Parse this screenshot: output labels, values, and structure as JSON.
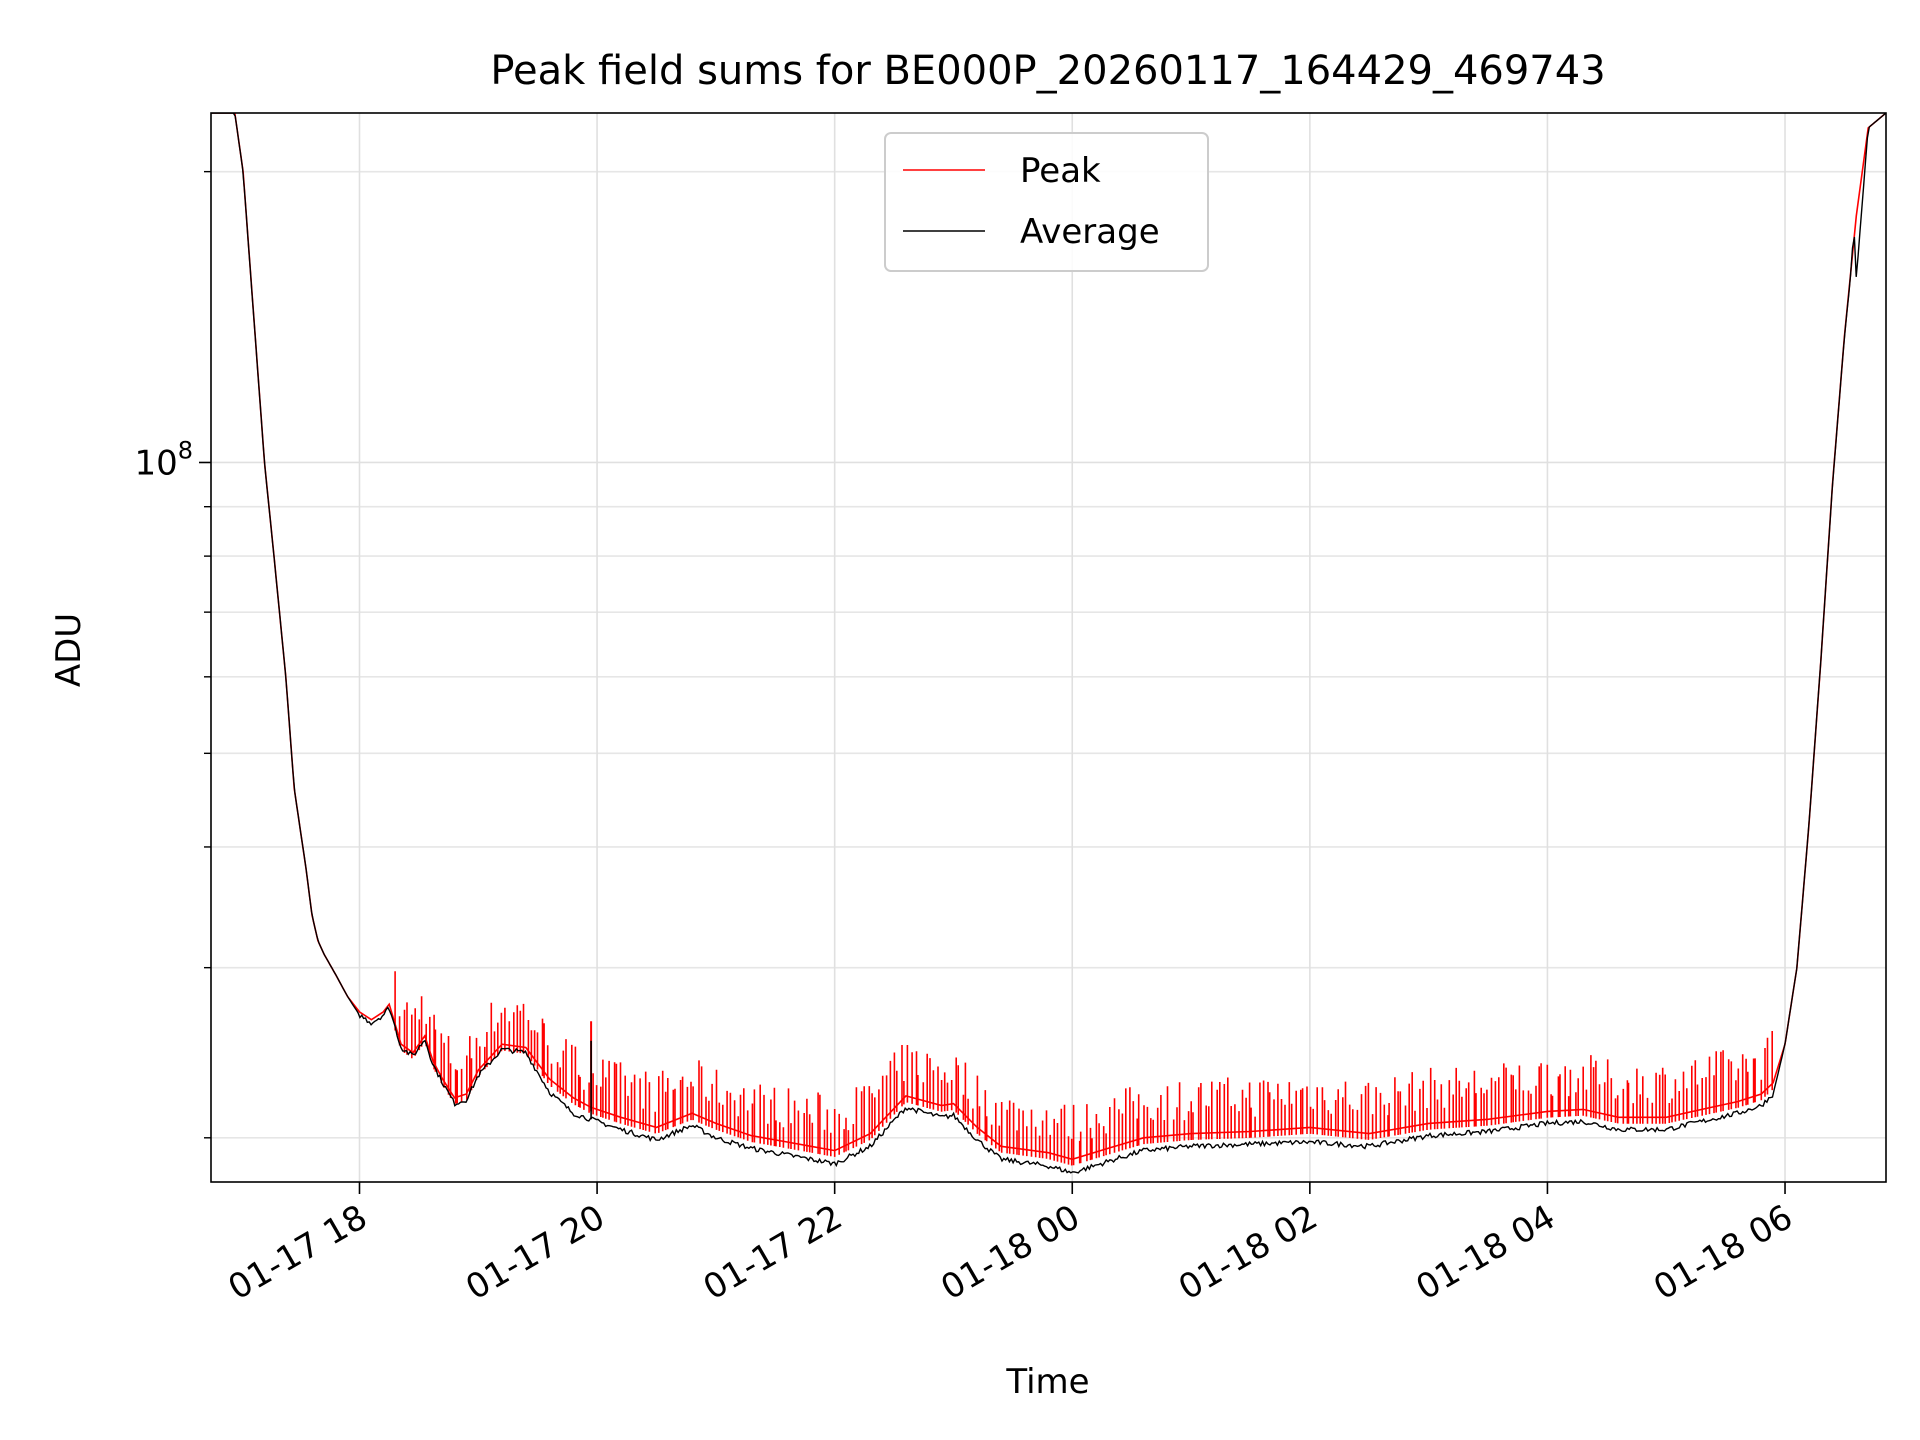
{
  "chart_data": {
    "type": "line",
    "title": "Peak field sums for BE000P_20260117_164429_469743",
    "xlabel": "Time",
    "ylabel": "ADU",
    "yscale": "log",
    "ytick_label": {
      "base": "10",
      "exp": "8"
    },
    "ytick_value": 100000000,
    "ylim": [
      18000000,
      230000000
    ],
    "xlim": [
      -1.25,
      12.85
    ],
    "x_unit": "hours since 01-17 18:00",
    "xticks": [
      0,
      2,
      4,
      6,
      8,
      10,
      12
    ],
    "xtick_labels": [
      "01-17 18",
      "01-17 20",
      "01-17 22",
      "01-18 00",
      "01-18 02",
      "01-18 04",
      "01-18 06"
    ],
    "grid": true,
    "legend_position": "upper center",
    "series": [
      {
        "name": "Peak",
        "color": "#ff0000",
        "x": [
          -1.25,
          -1.05,
          -0.98,
          -0.8,
          -0.72,
          -0.62,
          -0.55,
          -0.45,
          -0.4,
          -0.35,
          -0.3,
          -0.2,
          -0.1,
          0,
          0.1,
          0.2,
          0.25,
          0.35,
          0.45,
          0.55,
          0.62,
          0.7,
          0.8,
          0.9,
          1.0,
          1.2,
          1.4,
          1.6,
          1.8,
          1.95,
          2.2,
          2.5,
          2.8,
          3.0,
          3.3,
          3.6,
          3.8,
          4.0,
          4.3,
          4.6,
          4.9,
          5.0,
          5.2,
          5.4,
          5.8,
          6.0,
          6.3,
          6.6,
          7.0,
          7.5,
          8.0,
          8.5,
          9.0,
          9.5,
          10.0,
          10.3,
          10.6,
          11.0,
          11.3,
          11.6,
          11.8,
          11.9,
          12.0,
          12.1,
          12.2,
          12.3,
          12.4,
          12.5,
          12.6,
          12.7,
          12.85
        ],
        "values": [
          230000000,
          230000000,
          200000000,
          100000000,
          80000000,
          60000000,
          46000000,
          38000000,
          34000000,
          32000000,
          31000000,
          29500000,
          28000000,
          27000000,
          26500000,
          27000000,
          27500000,
          25000000,
          24500000,
          25500000,
          24000000,
          23000000,
          22000000,
          22200000,
          23500000,
          25000000,
          24800000,
          23000000,
          22000000,
          21500000,
          21000000,
          20500000,
          21200000,
          20700000,
          20100000,
          19800000,
          19600000,
          19400000,
          20200000,
          22100000,
          21600000,
          21700000,
          20500000,
          19600000,
          19300000,
          19000000,
          19500000,
          20000000,
          20200000,
          20300000,
          20500000,
          20200000,
          20700000,
          20900000,
          21300000,
          21400000,
          21000000,
          21000000,
          21400000,
          21800000,
          22200000,
          22800000,
          25000000,
          30000000,
          42000000,
          62000000,
          95000000,
          135000000,
          180000000,
          222000000,
          230000000
        ],
        "spike_amp": 0.11,
        "spike_range": [
          0.3,
          11.9
        ],
        "spike_count": 380
      },
      {
        "name": "Average",
        "color": "#000000",
        "x": [
          -1.25,
          -1.05,
          -0.98,
          -0.8,
          -0.72,
          -0.62,
          -0.55,
          -0.45,
          -0.4,
          -0.35,
          -0.3,
          -0.2,
          -0.1,
          0,
          0.1,
          0.2,
          0.25,
          0.35,
          0.45,
          0.55,
          0.62,
          0.7,
          0.8,
          0.9,
          1.0,
          1.2,
          1.4,
          1.6,
          1.8,
          1.95,
          2.2,
          2.5,
          2.8,
          3.0,
          3.3,
          3.6,
          3.8,
          4.0,
          4.3,
          4.6,
          4.9,
          5.0,
          5.2,
          5.4,
          5.8,
          6.0,
          6.3,
          6.6,
          7.0,
          7.5,
          8.0,
          8.5,
          9.0,
          9.5,
          10.0,
          10.3,
          10.6,
          11.0,
          11.3,
          11.6,
          11.8,
          11.9,
          12.0,
          12.1,
          12.2,
          12.3,
          12.4,
          12.5,
          12.55,
          12.58,
          12.6,
          12.7,
          12.85
        ],
        "values": [
          230000000,
          230000000,
          200000000,
          100000000,
          80000000,
          60000000,
          46000000,
          38000000,
          34000000,
          32000000,
          31000000,
          29500000,
          28000000,
          26800000,
          26300000,
          26800000,
          27300000,
          24800000,
          24300000,
          25300000,
          23800000,
          22800000,
          21700000,
          21900000,
          23200000,
          24700000,
          24500000,
          22300000,
          21200000,
          20900000,
          20400000,
          19900000,
          20600000,
          20000000,
          19500000,
          19200000,
          19000000,
          18800000,
          19600000,
          21500000,
          21000000,
          21100000,
          19900000,
          19000000,
          18700000,
          18400000,
          18900000,
          19400000,
          19600000,
          19700000,
          19800000,
          19600000,
          20100000,
          20300000,
          20700000,
          20800000,
          20400000,
          20400000,
          20800000,
          21200000,
          21600000,
          22200000,
          25000000,
          30000000,
          42000000,
          62000000,
          95000000,
          135000000,
          155000000,
          175000000,
          155000000,
          222000000,
          230000000
        ]
      }
    ]
  }
}
